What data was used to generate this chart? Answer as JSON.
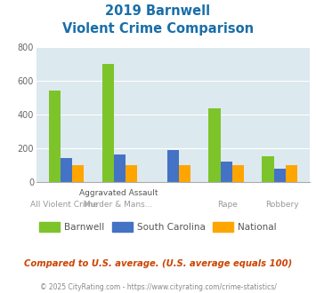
{
  "title_line1": "2019 Barnwell",
  "title_line2": "Violent Crime Comparison",
  "barnwell": [
    540,
    700,
    0,
    435,
    150
  ],
  "south_carolina": [
    140,
    160,
    190,
    120,
    75
  ],
  "national": [
    100,
    100,
    100,
    100,
    100
  ],
  "bar_color_barnwell": "#7dc42a",
  "bar_color_sc": "#4472c4",
  "bar_color_national": "#ffa500",
  "ylim": [
    0,
    800
  ],
  "yticks": [
    0,
    200,
    400,
    600,
    800
  ],
  "bg_color": "#dce9ef",
  "title_color": "#1a6ea8",
  "note_color": "#cc4400",
  "footer_color": "#888888",
  "note": "Compared to U.S. average. (U.S. average equals 100)",
  "footer": "© 2025 CityRating.com - https://www.cityrating.com/crime-statistics/",
  "legend_labels": [
    "Barnwell",
    "South Carolina",
    "National"
  ],
  "top_xlabels": [
    "",
    "Aggravated Assault",
    "",
    "",
    ""
  ],
  "bot_xlabels": [
    "All Violent Crime",
    "Murder & Mans...",
    "",
    "Rape",
    "Robbery"
  ]
}
